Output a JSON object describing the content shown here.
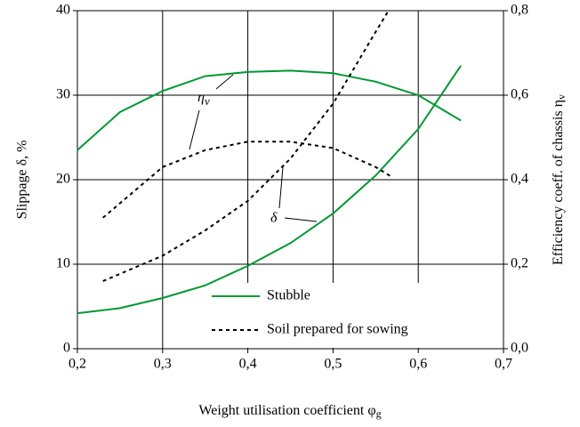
{
  "chart_data": {
    "type": "line",
    "xlabel": {
      "text": "Weight utilisation coefficient φ",
      "sub": "g"
    },
    "ylabel": "Slippage  δ,  %",
    "y2label": {
      "text": "Efficiency coeff. of chassis η",
      "sub": "v"
    },
    "xlim": [
      0.2,
      0.7
    ],
    "xticks": [
      {
        "value": 0.2,
        "label": "0,2"
      },
      {
        "value": 0.3,
        "label": "0,3"
      },
      {
        "value": 0.4,
        "label": "0,4"
      },
      {
        "value": 0.5,
        "label": "0,5"
      },
      {
        "value": 0.6,
        "label": "0,6"
      },
      {
        "value": 0.7,
        "label": "0,7"
      }
    ],
    "ylim": [
      0,
      40
    ],
    "yticks": [
      0,
      10,
      20,
      30,
      40
    ],
    "y2lim": [
      0,
      0.8
    ],
    "y2ticks": [
      {
        "value": 0,
        "label": "0,0"
      },
      {
        "value": 0.2,
        "label": "0,2"
      },
      {
        "value": 0.4,
        "label": "0,4"
      },
      {
        "value": 0.6,
        "label": "0,6"
      },
      {
        "value": 0.8,
        "label": "0,8"
      }
    ],
    "grid": true,
    "annotations": [
      {
        "text": "η",
        "sub": "v"
      },
      {
        "text": "δ"
      }
    ],
    "series": [
      {
        "name": "Stubble",
        "color": "#009933",
        "dash": false,
        "slippage": {
          "x": [
            0.2,
            0.25,
            0.3,
            0.35,
            0.4,
            0.45,
            0.5,
            0.55,
            0.6,
            0.65
          ],
          "values": [
            4.2,
            4.8,
            6.0,
            7.5,
            9.8,
            12.5,
            16,
            20.5,
            26,
            33.5
          ]
        },
        "efficiency": {
          "axis": "y2",
          "x": [
            0.2,
            0.25,
            0.3,
            0.35,
            0.4,
            0.45,
            0.5,
            0.55,
            0.6,
            0.65
          ],
          "values": [
            0.47,
            0.56,
            0.61,
            0.645,
            0.655,
            0.658,
            0.652,
            0.632,
            0.6,
            0.54
          ]
        }
      },
      {
        "name": "Soil prepared for sowing",
        "color": "#000000",
        "dash": true,
        "slippage": {
          "x": [
            0.23,
            0.3,
            0.35,
            0.4,
            0.45,
            0.5,
            0.55,
            0.565
          ],
          "values": [
            8,
            11,
            14,
            17.5,
            22.5,
            29,
            37.5,
            40
          ]
        },
        "efficiency": {
          "axis": "y2",
          "x": [
            0.23,
            0.3,
            0.35,
            0.4,
            0.45,
            0.5,
            0.55,
            0.57
          ],
          "values": [
            0.31,
            0.43,
            0.47,
            0.49,
            0.49,
            0.475,
            0.43,
            0.405
          ]
        }
      }
    ]
  }
}
